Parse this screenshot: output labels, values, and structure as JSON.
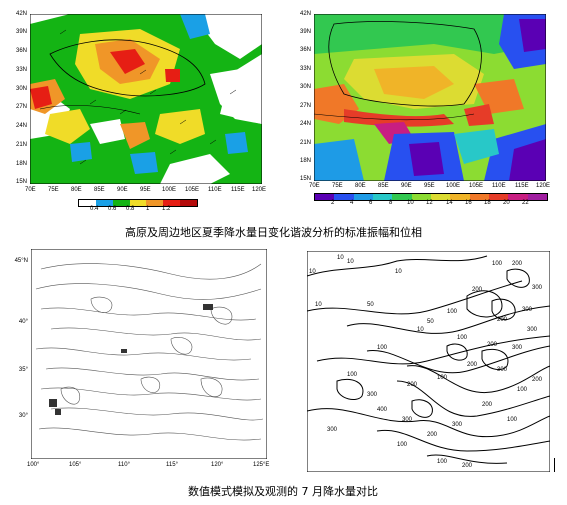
{
  "top_left_map": {
    "lat_labels": [
      "42N",
      "39N",
      "36N",
      "33N",
      "30N",
      "27N",
      "24N",
      "21N",
      "18N",
      "15N"
    ],
    "lon_labels": [
      "70E",
      "75E",
      "80E",
      "85E",
      "90E",
      "95E",
      "100E",
      "105E",
      "110E",
      "115E",
      "120E"
    ],
    "colorbar_labels": [
      "0.4",
      "0.6",
      "0.8",
      "1",
      "1.2"
    ],
    "colorbar_colors": [
      "#ffffff",
      "#1aa0e6",
      "#14b414",
      "#f0dc28",
      "#f09628",
      "#e61e14",
      "#b40a0a"
    ]
  },
  "top_right_map": {
    "lat_labels": [
      "42N",
      "39N",
      "36N",
      "33N",
      "30N",
      "27N",
      "24N",
      "21N",
      "18N",
      "15N"
    ],
    "lon_labels": [
      "70E",
      "75E",
      "80E",
      "85E",
      "90E",
      "95E",
      "100E",
      "105E",
      "110E",
      "115E",
      "120E"
    ],
    "colorbar_labels": [
      "2",
      "4",
      "6",
      "8",
      "10",
      "12",
      "14",
      "16",
      "18",
      "20",
      "22"
    ],
    "colorbar_colors": [
      "#5a00b4",
      "#2850f0",
      "#1e9be6",
      "#28c8c8",
      "#32c850",
      "#8cdc32",
      "#dcdc32",
      "#f0b428",
      "#f07828",
      "#e63c28",
      "#c81e82",
      "#a01ea0"
    ]
  },
  "caption_top": "高原及周边地区夏季降水量日变化谐波分析的标准振幅和位相",
  "bottom_left_map": {
    "lat_labels": [
      "45°N",
      "40°",
      "35°",
      "30°"
    ],
    "lon_labels": [
      "100°",
      "105°",
      "110°",
      "115°",
      "120°",
      "125°E"
    ]
  },
  "bottom_right_map": {
    "contour_labels": [
      "10",
      "10",
      "10",
      "50",
      "100",
      "200",
      "200",
      "300",
      "200",
      "100",
      "50",
      "300",
      "200",
      "100",
      "300",
      "100",
      "300",
      "200",
      "400",
      "300",
      "200",
      "100",
      "300",
      "100",
      "200",
      "100",
      "300",
      "200",
      "100",
      "10",
      "10",
      "10",
      "100",
      "200",
      "300",
      "300",
      "200",
      "100"
    ]
  },
  "caption_bottom": "数值模式模拟及观测的 7 月降水量对比"
}
